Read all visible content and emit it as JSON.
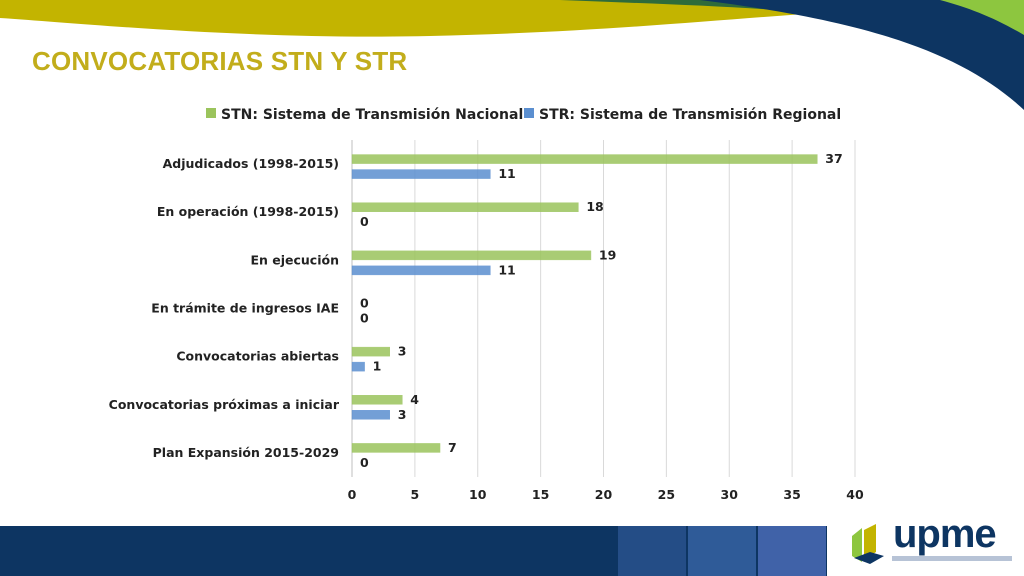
{
  "slide": {
    "title": "CONVOCATORIAS STN Y STR",
    "logo_text": "upme"
  },
  "colors": {
    "stn": "#9bc45c",
    "str": "#5b8fd0",
    "title": "#c2ad1b",
    "footer": "#0d3562"
  },
  "chart_data": {
    "type": "bar",
    "orientation": "horizontal",
    "categories": [
      "Adjudicados (1998-2015)",
      "En operación (1998-2015)",
      "En ejecución",
      "En trámite de ingresos IAE",
      "Convocatorias abiertas",
      "Convocatorias próximas a iniciar",
      "Plan Expansión 2015-2029"
    ],
    "series": [
      {
        "name": "STN: Sistema de Transmisión Nacional",
        "values": [
          37,
          18,
          19,
          0,
          3,
          4,
          7
        ]
      },
      {
        "name": "STR: Sistema de Transmisión Regional",
        "values": [
          11,
          0,
          11,
          0,
          1,
          3,
          0
        ]
      }
    ],
    "xlim": [
      0,
      40
    ],
    "xticks": [
      0,
      5,
      10,
      15,
      20,
      25,
      30,
      35,
      40
    ],
    "grid": true,
    "legend_position": "top",
    "data_labels": true
  }
}
